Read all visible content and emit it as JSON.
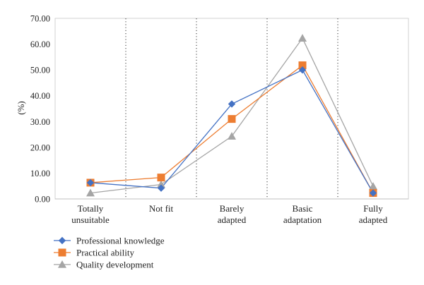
{
  "chart_data": {
    "type": "line",
    "categories": [
      [
        "Totally",
        "unsuitable"
      ],
      [
        "Not fit"
      ],
      [
        "Barely",
        "adapted"
      ],
      [
        "Basic",
        "adaptation"
      ],
      [
        "Fully",
        "adapted"
      ]
    ],
    "ylabel": "(%)",
    "ylim": [
      0,
      70
    ],
    "yticks": [
      "0.00",
      "10.00",
      "20.00",
      "30.00",
      "40.00",
      "50.00",
      "60.00",
      "70.00"
    ],
    "grid": false,
    "category_separators": "dotted",
    "legend_position": "bottom-left",
    "series": [
      {
        "name": "Professional knowledge",
        "color": "#4472C4",
        "marker": "diamond",
        "values": [
          6.3,
          4.2,
          36.8,
          50.0,
          2.3
        ]
      },
      {
        "name": "Practical ability",
        "color": "#ED7D31",
        "marker": "square",
        "values": [
          6.3,
          8.3,
          31.0,
          51.8,
          2.3
        ]
      },
      {
        "name": "Quality development",
        "color": "#A5A5A5",
        "marker": "triangle",
        "values": [
          2.3,
          5.6,
          24.3,
          62.3,
          4.9
        ]
      }
    ]
  }
}
